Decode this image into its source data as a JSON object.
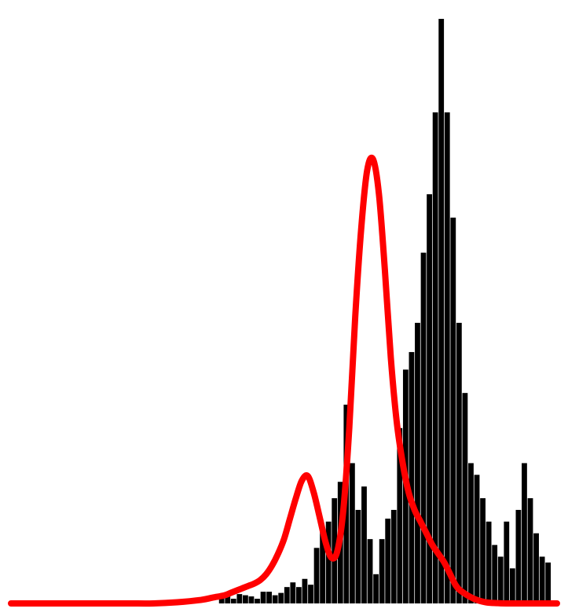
{
  "chart_data": {
    "type": "bar",
    "title": "",
    "xlabel": "",
    "ylabel": "",
    "axes_visible": false,
    "grid": false,
    "legend": "none",
    "ylim": [
      0,
      100
    ],
    "x": [
      -4.45,
      -4.35,
      -4.25,
      -4.15,
      -4.05,
      -3.95,
      -3.85,
      -3.75,
      -3.65,
      -3.55,
      -3.45,
      -3.35,
      -3.25,
      -3.15,
      -3.05,
      -2.95,
      -2.85,
      -2.75,
      -2.65,
      -2.55,
      -2.45,
      -2.35,
      -2.25,
      -2.15,
      -2.05,
      -1.95,
      -1.85,
      -1.75,
      -1.65,
      -1.55,
      -1.45,
      -1.35,
      -1.25,
      -1.15,
      -1.05,
      -0.95,
      -0.85,
      -0.75,
      -0.65,
      -0.55,
      -0.45,
      -0.35,
      -0.25,
      -0.15,
      -0.05,
      0.05,
      0.15,
      0.25,
      0.35,
      0.45,
      0.55,
      0.65,
      0.75,
      0.85,
      0.95,
      1.05,
      1.15,
      1.25,
      1.35,
      1.45,
      1.55,
      1.65,
      1.75,
      1.85,
      1.95,
      2.05,
      2.15,
      2.25,
      2.35,
      2.45,
      2.55,
      2.65,
      2.75,
      2.85,
      2.95,
      3.05,
      3.15,
      3.25,
      3.35,
      3.45,
      3.55,
      3.65,
      3.75,
      3.85,
      3.95,
      4.05,
      4.15,
      4.25,
      4.35,
      4.45
    ],
    "series": [
      {
        "type": "bar",
        "color": "#000000",
        "values": [
          0,
          0,
          0,
          0,
          0,
          0,
          0,
          0,
          0,
          0,
          0,
          0,
          0,
          0,
          0,
          0,
          0,
          0,
          0,
          0,
          0,
          0,
          0,
          0,
          0,
          0,
          0,
          0,
          0,
          0,
          0,
          0,
          0,
          0,
          1.2,
          1.6,
          0.8,
          1.6,
          1.4,
          1.2,
          0.8,
          2.0,
          2.0,
          1.4,
          1.8,
          2.8,
          3.6,
          2.8,
          4.2,
          3.2,
          9.5,
          12.4,
          14.0,
          18.0,
          20.8,
          34.0,
          24.0,
          16.0,
          20.0,
          11.0,
          5.0,
          11.0,
          14.5,
          16.0,
          30.0,
          40.0,
          43.0,
          48.0,
          60.0,
          70.0,
          84.0,
          100.0,
          84.0,
          66.0,
          48.0,
          36.0,
          24.0,
          22.0,
          18.0,
          14.0,
          10.0,
          8.0,
          14.0,
          6.0,
          16.0,
          24.0,
          18.0,
          12.0,
          8.0,
          7.0
        ]
      },
      {
        "type": "line",
        "color": "#ff0000",
        "x": [
          -4.6,
          -4.2,
          -3.8,
          -3.4,
          -3.0,
          -2.6,
          -2.2,
          -1.8,
          -1.4,
          -1.2,
          -1.0,
          -0.9,
          -0.8,
          -0.7,
          -0.6,
          -0.5,
          -0.4,
          -0.3,
          -0.2,
          -0.1,
          0.0,
          0.1,
          0.2,
          0.3,
          0.4,
          0.5,
          0.6,
          0.7,
          0.8,
          0.9,
          1.0,
          1.1,
          1.2,
          1.3,
          1.4,
          1.5,
          1.6,
          1.7,
          1.8,
          1.9,
          2.0,
          2.1,
          2.2,
          2.3,
          2.4,
          2.5,
          2.6,
          2.7,
          2.8,
          2.9,
          3.0,
          3.2,
          3.4,
          3.6,
          3.8,
          4.0,
          4.2,
          4.6
        ],
        "values": [
          0,
          0,
          0,
          0,
          0,
          0,
          0,
          0.2,
          0.6,
          1.0,
          1.4,
          1.8,
          2.2,
          2.6,
          3.0,
          3.4,
          4.0,
          5.0,
          6.5,
          8.5,
          11.0,
          14.5,
          18.0,
          21.0,
          21.8,
          19.0,
          14.8,
          10.5,
          7.8,
          9.0,
          16.0,
          30.0,
          49.0,
          64.0,
          74.0,
          76.0,
          70.0,
          57.0,
          42.0,
          31.0,
          24.0,
          19.0,
          16.0,
          14.0,
          12.0,
          10.0,
          8.5,
          7.0,
          5.0,
          3.0,
          2.0,
          0.8,
          0.2,
          0.05,
          0,
          0,
          0,
          0
        ]
      }
    ]
  }
}
